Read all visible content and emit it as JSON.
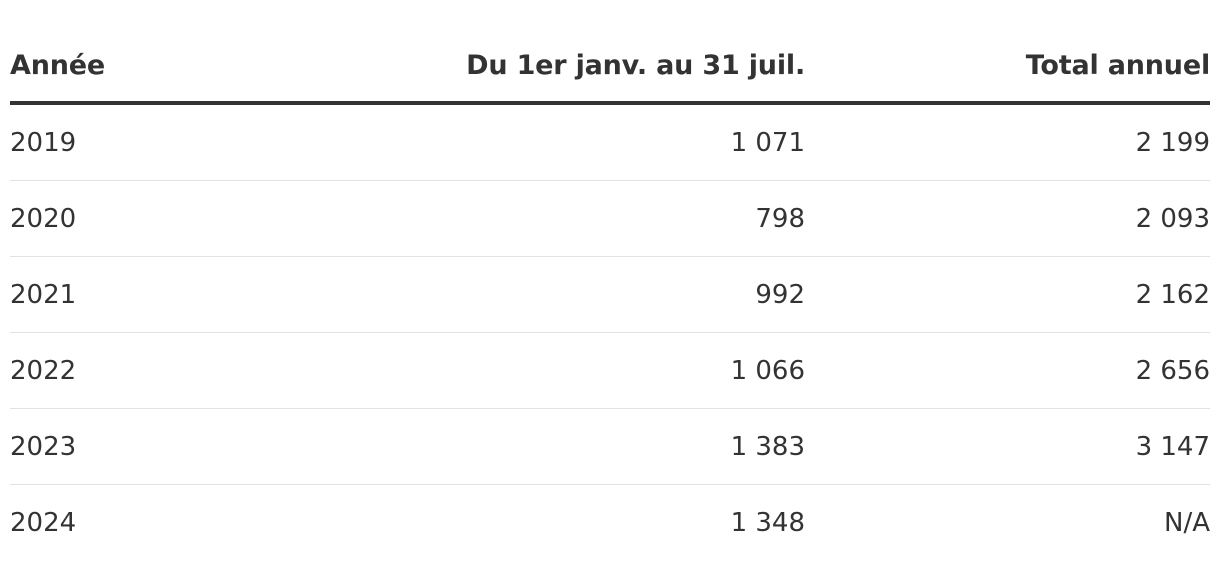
{
  "chart_data": {
    "type": "table",
    "columns": [
      "Année",
      "Du 1er janv. au 31 juil.",
      "Total annuel"
    ],
    "rows": [
      {
        "annee": "2019",
        "ytd": "1 071",
        "total": "2 199"
      },
      {
        "annee": "2020",
        "ytd": "798",
        "total": "2 093"
      },
      {
        "annee": "2021",
        "ytd": "992",
        "total": "2 162"
      },
      {
        "annee": "2022",
        "ytd": "1 066",
        "total": "2 656"
      },
      {
        "annee": "2023",
        "ytd": "1 383",
        "total": "3 147"
      },
      {
        "annee": "2024",
        "ytd": "1 348",
        "total": "N/A"
      }
    ]
  }
}
